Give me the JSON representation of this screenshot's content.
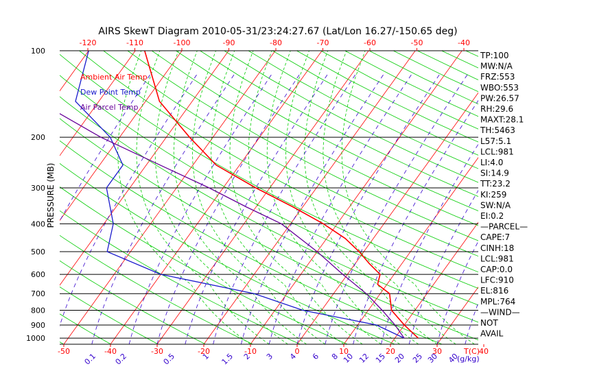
{
  "chart_data": {
    "type": "line",
    "title": "AIRS SkewT Diagram 2010-05-31/23:24:27.67 (Lat/Lon 16.27/-150.65 deg)",
    "ylabel": "PRESSURE (MB)",
    "xlabel": "T(C)",
    "mixing_ratio_label": "(g/kg)",
    "top_axis_ticks": [
      "-120",
      "-110",
      "-100",
      "-90",
      "-80",
      "-70",
      "-60",
      "-50",
      "-40"
    ],
    "top_axis_values": [
      -120,
      -110,
      -100,
      -90,
      -80,
      -70,
      -60,
      -50,
      -40
    ],
    "bottom_axis_ticks": [
      "-50",
      "-40",
      "-30",
      "-20",
      "-10",
      "0",
      "10",
      "20",
      "30",
      "40"
    ],
    "bottom_axis_values": [
      -50,
      -40,
      -30,
      -20,
      -10,
      0,
      10,
      20,
      30,
      40
    ],
    "pressure_ticks": [
      "100",
      "200",
      "300",
      "400",
      "500",
      "600",
      "700",
      "800",
      "900",
      "1000"
    ],
    "pressure_values": [
      100,
      200,
      300,
      400,
      500,
      600,
      700,
      800,
      900,
      1000
    ],
    "mixing_ratio_ticks": [
      "0.1",
      "0.2",
      "0.5",
      "1",
      "1.5",
      "2",
      "3",
      "4",
      "6",
      "8",
      "10",
      "12",
      "15",
      "20",
      "25",
      "30",
      "40"
    ],
    "legend": [
      {
        "name": "Ambient Air Temp",
        "color": "#ff0000"
      },
      {
        "name": "Dew Point Temp",
        "color": "#1a1acc"
      },
      {
        "name": "Air Parcel Temp",
        "color": "#660099"
      }
    ],
    "series": [
      {
        "name": "Ambient Air Temp",
        "color": "#ff0000",
        "points": [
          [
            100,
            -78
          ],
          [
            150,
            -67
          ],
          [
            200,
            -55
          ],
          [
            250,
            -45
          ],
          [
            300,
            -33
          ],
          [
            350,
            -22
          ],
          [
            400,
            -13
          ],
          [
            450,
            -6
          ],
          [
            500,
            -1
          ],
          [
            550,
            3
          ],
          [
            600,
            7
          ],
          [
            650,
            8
          ],
          [
            700,
            12
          ],
          [
            800,
            15
          ],
          [
            900,
            20
          ],
          [
            1000,
            25
          ]
        ]
      },
      {
        "name": "Dew Point Temp",
        "color": "#1a1acc",
        "points": [
          [
            100,
            -90
          ],
          [
            150,
            -85
          ],
          [
            200,
            -72
          ],
          [
            250,
            -65
          ],
          [
            300,
            -65
          ],
          [
            400,
            -58
          ],
          [
            500,
            -55
          ],
          [
            600,
            -40
          ],
          [
            700,
            -17
          ],
          [
            800,
            -4
          ],
          [
            900,
            14
          ],
          [
            1000,
            22
          ]
        ]
      },
      {
        "name": "Air Parcel Temp",
        "color": "#660099",
        "points": [
          [
            100,
            -108
          ],
          [
            150,
            -93
          ],
          [
            200,
            -74
          ],
          [
            250,
            -57
          ],
          [
            300,
            -43
          ],
          [
            350,
            -32
          ],
          [
            400,
            -22
          ],
          [
            500,
            -10
          ],
          [
            600,
            -1
          ],
          [
            700,
            7
          ],
          [
            800,
            13
          ],
          [
            900,
            18
          ],
          [
            1000,
            22
          ]
        ]
      }
    ],
    "grid": true,
    "legend_position": "top-left"
  },
  "indices": [
    "TP:100",
    "MW:N/A",
    "FRZ:553",
    "WBO:553",
    "PW:26.57",
    "RH:29.6",
    "MAXT:28.1",
    "TH:5463",
    "L57:5.1",
    "LCL:981",
    "LI:4.0",
    "SI:14.9",
    "TT:23.2",
    "KI:259",
    "SW:N/A",
    "EI:0.2",
    "—PARCEL—",
    "CAPE:7",
    "CINH:18",
    "LCL:981",
    "CAP:0.0",
    "LFC:910",
    "EL:816",
    "MPL:764",
    "—WIND—",
    "NOT",
    "AVAIL"
  ],
  "colors": {
    "temp": "#ff0000",
    "dew": "#1a1acc",
    "parcel": "#660099",
    "iso": "#ff0000",
    "dry": "#00cc00",
    "mix": "#3300cc",
    "moist": "#00cc00"
  }
}
